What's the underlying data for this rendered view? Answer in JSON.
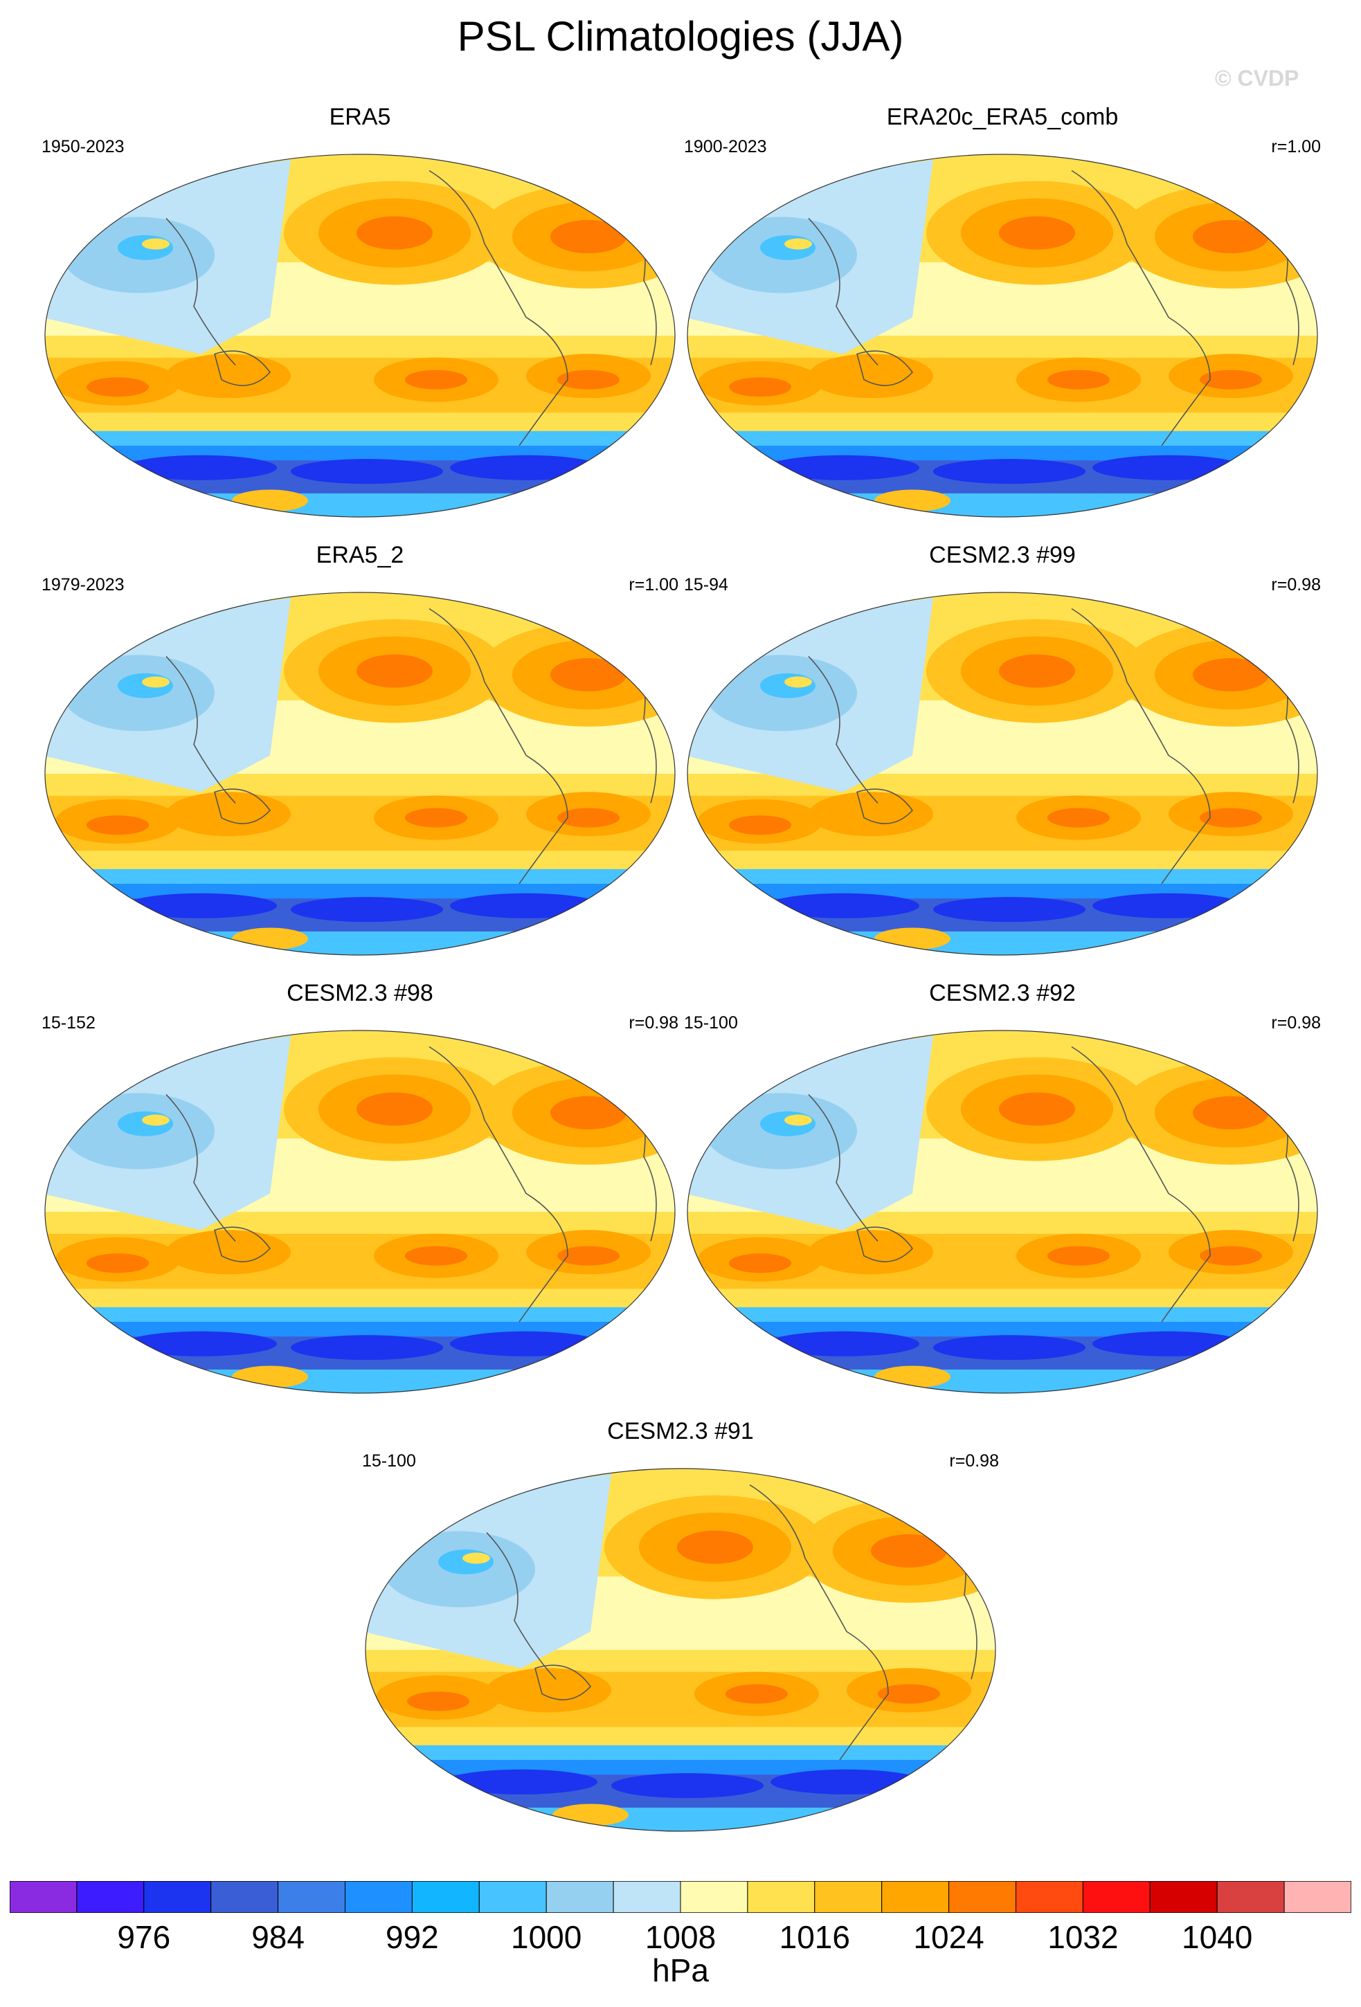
{
  "title": "PSL Climatologies (JJA)",
  "watermark": "© CVDP",
  "panels": [
    {
      "name": "ERA5",
      "period": "1950-2023",
      "r": ""
    },
    {
      "name": "ERA20c_ERA5_comb",
      "period": "1900-2023",
      "r": "r=1.00"
    },
    {
      "name": "ERA5_2",
      "period": "1979-2023",
      "r": "r=1.00"
    },
    {
      "name": "CESM2.3 #99",
      "period": "15-94",
      "r": "r=0.98"
    },
    {
      "name": "CESM2.3 #98",
      "period": "15-152",
      "r": "r=0.98"
    },
    {
      "name": "CESM2.3 #92",
      "period": "15-100",
      "r": "r=0.98"
    },
    {
      "name": "CESM2.3 #91",
      "period": "15-100",
      "r": "r=0.98"
    }
  ],
  "colorbar": {
    "units": "hPa",
    "tick_labels": [
      "976",
      "984",
      "992",
      "1000",
      "1008",
      "1016",
      "1024",
      "1032",
      "1040"
    ],
    "colors": [
      "#8a2be2",
      "#3d1cff",
      "#1c33f0",
      "#3a5ed6",
      "#3d7fe8",
      "#1e90ff",
      "#12b5ff",
      "#47c3ff",
      "#96d0f0",
      "#bfe3f7",
      "#fffbb0",
      "#ffe150",
      "#ffc21f",
      "#ffa600",
      "#ff7a00",
      "#ff4a10",
      "#ff1010",
      "#d60000",
      "#d94141",
      "#ffb3b3"
    ]
  },
  "map_colors": {
    "ocean_high": "#ffa600",
    "ocean_high_core": "#ff7a00",
    "subtropic": "#ffc21f",
    "midlat": "#ffe150",
    "tropic": "#fffbb0",
    "asia_low": "#bfe3f7",
    "asia_low_core": "#96d0f0",
    "asia_low_deep": "#47c3ff",
    "south_ocean_1": "#47c3ff",
    "south_ocean_2": "#1e90ff",
    "south_ocean_3": "#3a5ed6",
    "south_ocean_4": "#1c33f0",
    "coast": "#555555"
  }
}
